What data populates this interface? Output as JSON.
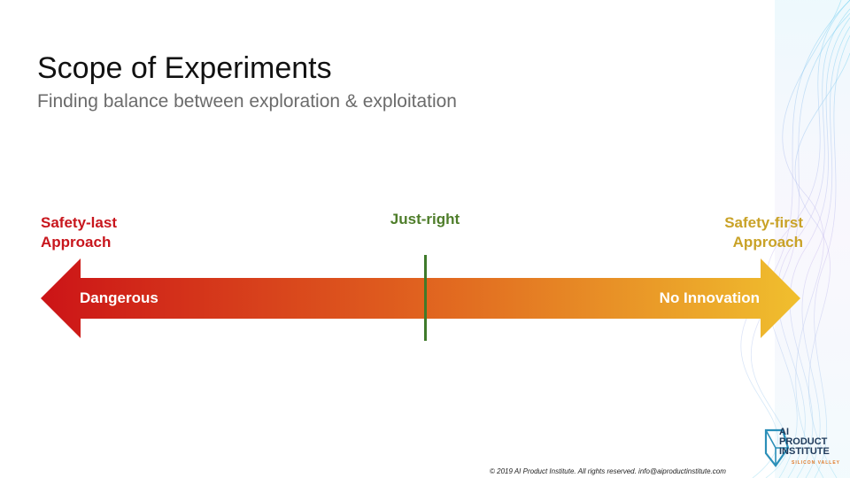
{
  "slide": {
    "title": "Scope of Experiments",
    "subtitle": "Finding balance between exploration & exploitation"
  },
  "spectrum": {
    "left_label": [
      "Safety-last",
      "Approach"
    ],
    "right_label": [
      "Safety-first",
      "Approach"
    ],
    "center_label": "Just-right",
    "left_end_text": "Dangerous",
    "right_end_text": "No Innovation",
    "colors": {
      "left": "#cc1417",
      "middle": "#e0621f",
      "right": "#f0bf2e",
      "left_label": "#c8161d",
      "right_label": "#c9a227",
      "center_label": "#4e7d2a",
      "marker": "#3f7a2a"
    }
  },
  "footer": {
    "copyright": "© 2019 AI Product Institute. All rights reserved. info@aiproductinstitute.com"
  },
  "logo": {
    "text": "AI\nPRODUCT\nINSTITUTE",
    "tagline": "SILICON VALLEY",
    "icon": "ai-product-institute-logo-icon"
  }
}
